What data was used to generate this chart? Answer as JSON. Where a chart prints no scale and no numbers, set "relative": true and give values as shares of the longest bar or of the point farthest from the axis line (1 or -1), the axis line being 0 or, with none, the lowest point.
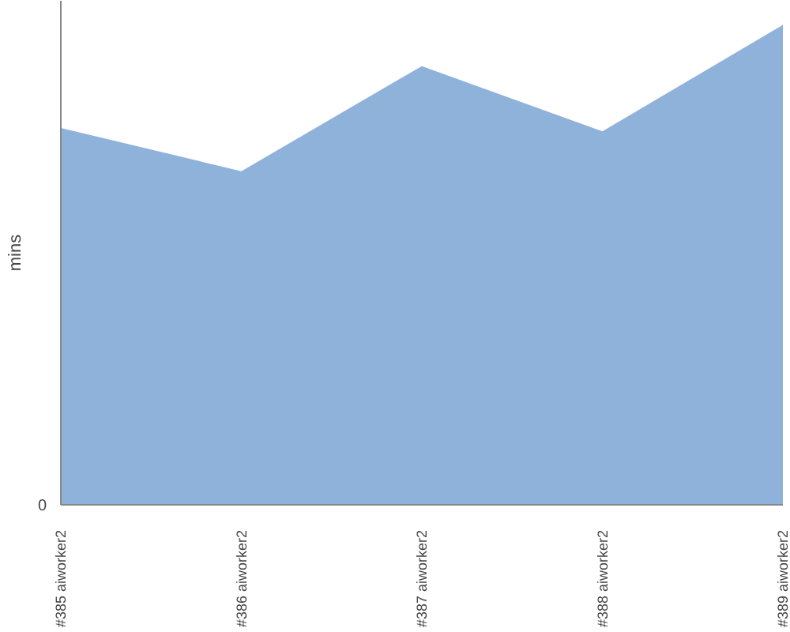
{
  "chart_data": {
    "type": "area",
    "ylabel": "mins",
    "relative": true,
    "annotations": [
      "0"
    ],
    "categories": [
      "#385 aiworker2",
      "#386 aiworker2",
      "#387 aiworker2",
      "#388 aiworker2",
      "#389 aiworker2"
    ],
    "series": [
      {
        "color": "#8fb2da",
        "values": [
          0.785,
          0.695,
          0.914,
          0.778,
          1.0
        ]
      }
    ],
    "grid": false
  }
}
